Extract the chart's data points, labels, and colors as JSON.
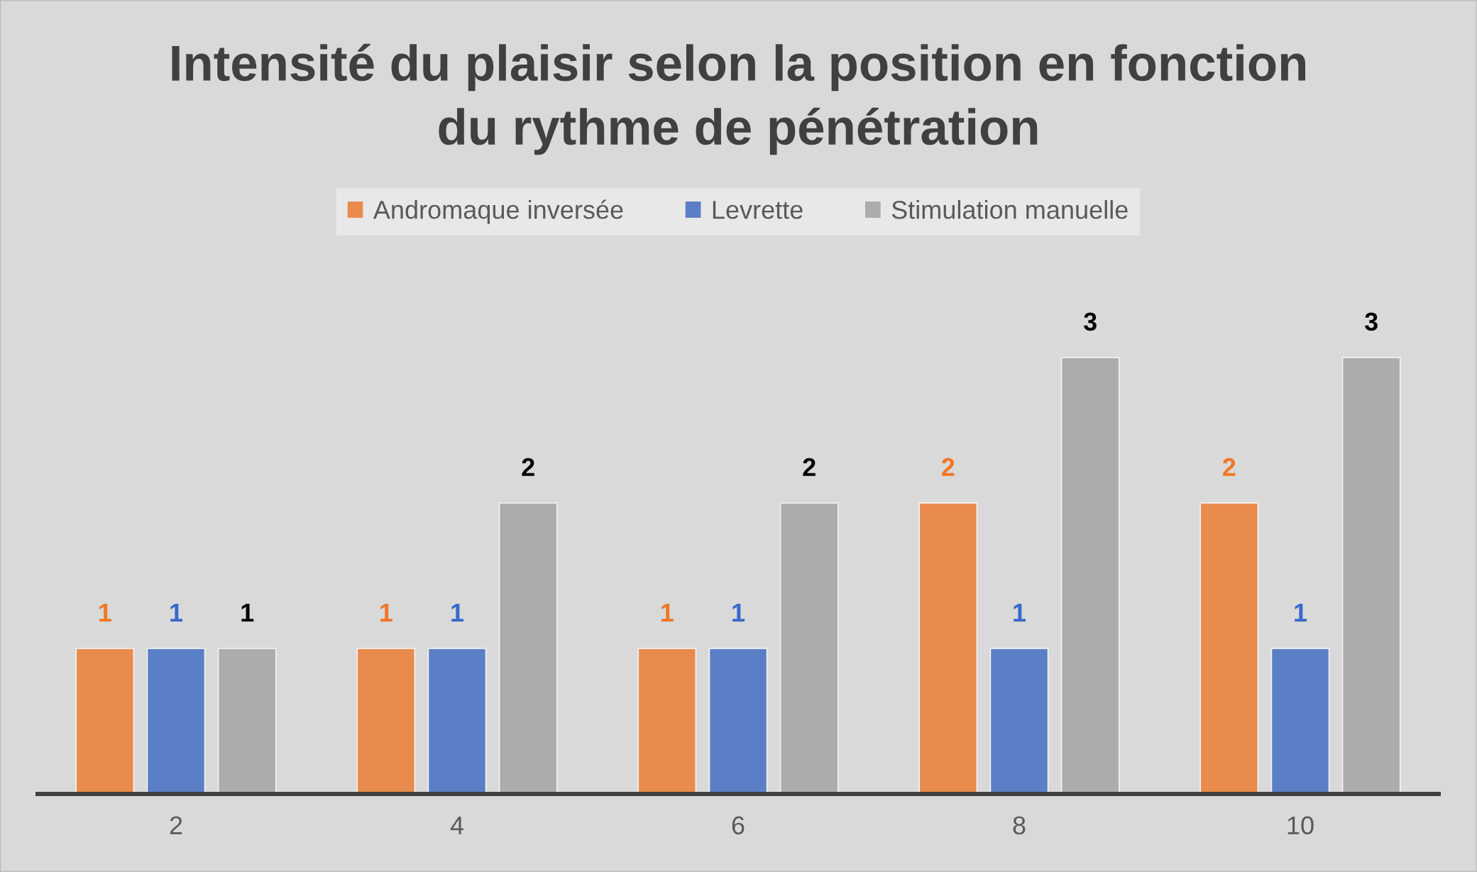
{
  "chart_data": {
    "type": "bar",
    "title": "Intensité du plaisir selon la position en fonction\ndu rythme de pénétration",
    "categories": [
      "2",
      "4",
      "6",
      "8",
      "10"
    ],
    "series": [
      {
        "name": "Andromaque inversée",
        "color": "#e98b4c",
        "values": [
          1,
          1,
          1,
          2,
          2
        ]
      },
      {
        "name": "Levrette",
        "color": "#5b7fc6",
        "values": [
          1,
          1,
          1,
          1,
          1
        ]
      },
      {
        "name": "Stimulation manuelle",
        "color": "#acacac",
        "values": [
          1,
          2,
          2,
          3,
          3
        ]
      }
    ],
    "data_labels": true,
    "legend": "top",
    "tick_labels": "x"
  }
}
